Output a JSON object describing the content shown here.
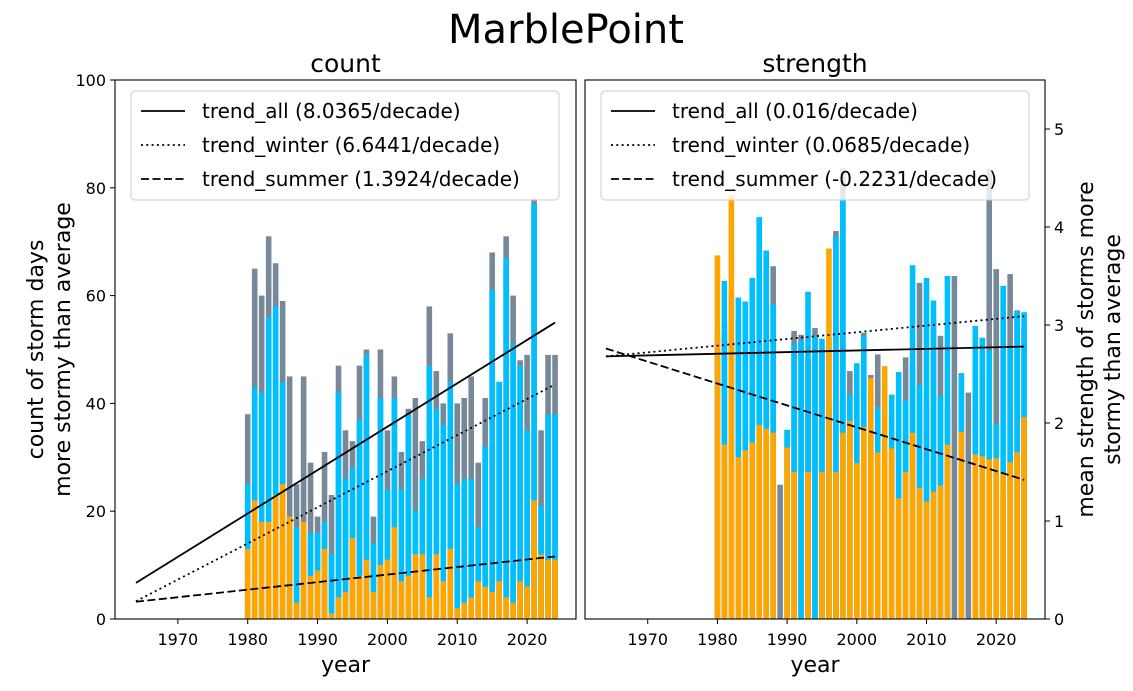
{
  "figure": {
    "title": "MarblePoint"
  },
  "colors": {
    "all": "#778899",
    "winter": "#00bfff",
    "summer": "#ffa500",
    "line": "#000000"
  },
  "chart_data": [
    {
      "type": "bar",
      "title": "count",
      "xlabel": "year",
      "ylabel": [
        "count of storm days",
        "more stormy than average"
      ],
      "xlim": [
        1961,
        2027
      ],
      "ylim": [
        0,
        100
      ],
      "xticks": [
        1970,
        1980,
        1990,
        2000,
        2010,
        2020
      ],
      "yticks": [
        0,
        20,
        40,
        60,
        80,
        100
      ],
      "legend_position": "top",
      "x": [
        1980,
        1981,
        1982,
        1983,
        1984,
        1985,
        1986,
        1987,
        1988,
        1989,
        1990,
        1991,
        1992,
        1993,
        1994,
        1995,
        1996,
        1997,
        1998,
        1999,
        2000,
        2001,
        2002,
        2003,
        2004,
        2005,
        2006,
        2007,
        2008,
        2009,
        2010,
        2011,
        2012,
        2013,
        2014,
        2015,
        2016,
        2017,
        2018,
        2019,
        2020,
        2021,
        2022,
        2023,
        2024
      ],
      "series": [
        {
          "name": "all",
          "color_key": "all",
          "values": [
            38,
            65,
            60,
            71,
            66,
            59,
            45,
            25,
            45,
            29,
            19,
            31,
            23,
            47,
            35,
            33,
            47,
            50,
            19,
            50,
            35,
            45,
            31,
            39,
            41,
            33,
            58,
            46,
            40,
            53,
            40,
            41,
            45,
            29,
            41,
            68,
            44,
            71,
            60,
            48,
            49,
            78,
            35,
            49,
            49
          ]
        },
        {
          "name": "winter",
          "color_key": "winter",
          "values": [
            25,
            43,
            42,
            56,
            58,
            44,
            19,
            17,
            16,
            16,
            16,
            18,
            12,
            42,
            26,
            28,
            37,
            49,
            14,
            41,
            24,
            41,
            24,
            38,
            20,
            26,
            47,
            39,
            36,
            44,
            25,
            26,
            26,
            17,
            32,
            61,
            44,
            67,
            51,
            47,
            35,
            77,
            21,
            38,
            38
          ]
        },
        {
          "name": "summer",
          "color_key": "summer",
          "values": [
            13,
            22,
            18,
            18,
            23,
            25,
            19,
            3,
            18,
            8,
            9,
            13,
            1,
            4,
            5,
            15,
            8,
            11,
            5,
            10,
            11,
            17,
            7,
            8,
            12,
            12,
            4,
            12,
            7,
            13,
            2,
            3,
            4,
            7,
            6,
            5,
            7,
            4,
            3,
            7,
            6,
            22,
            12,
            11,
            11
          ]
        }
      ],
      "trends": [
        {
          "label": "trend_all (8.0365/decade)",
          "style": "solid",
          "x": [
            1964,
            2024
          ],
          "y": [
            6.7,
            55.0
          ]
        },
        {
          "label": "trend_winter (6.6441/decade)",
          "style": "dotted",
          "x": [
            1964,
            2024
          ],
          "y": [
            3.3,
            43.5
          ]
        },
        {
          "label": "trend_summer (1.3924/decade)",
          "style": "dashed",
          "x": [
            1964,
            2024
          ],
          "y": [
            3.2,
            11.6
          ]
        }
      ]
    },
    {
      "type": "bar",
      "title": "strength",
      "xlabel": "year",
      "ylabel": [
        "mean strength of storms more",
        "stormy than average"
      ],
      "ylabel_side": "right",
      "xlim": [
        1961,
        2027
      ],
      "ylim": [
        0,
        5.5
      ],
      "xticks": [
        1970,
        1980,
        1990,
        2000,
        2010,
        2020
      ],
      "yticks": [
        0,
        1,
        2,
        3,
        4,
        5
      ],
      "legend_position": "top",
      "x": [
        1980,
        1981,
        1982,
        1983,
        1984,
        1985,
        1986,
        1987,
        1988,
        1989,
        1990,
        1991,
        1992,
        1993,
        1994,
        1995,
        1996,
        1997,
        1998,
        1999,
        2000,
        2001,
        2002,
        2003,
        2004,
        2005,
        2006,
        2007,
        2008,
        2009,
        2010,
        2011,
        2012,
        2013,
        2014,
        2015,
        2016,
        2017,
        2018,
        2019,
        2020,
        2021,
        2022,
        2023,
        2024
      ],
      "series": [
        {
          "name": "all",
          "color_key": "all",
          "values": [
            2.9,
            3.02,
            3.33,
            3.04,
            2.9,
            3.47,
            4.1,
            3.55,
            3.6,
            1.37,
            1.93,
            2.94,
            2.9,
            2.66,
            2.97,
            2.77,
            2.17,
            3.96,
            4.6,
            2.53,
            2.27,
            2.92,
            2.49,
            2.7,
            2.45,
            2.1,
            1.95,
            2.67,
            2.59,
            3.43,
            2.18,
            3.06,
            2.89,
            2.15,
            3.5,
            2.47,
            2.31,
            2.14,
            2.45,
            4.59,
            3.57,
            1.32,
            3.52,
            3.15,
            2.98
          ]
        },
        {
          "name": "winter",
          "color_key": "winter",
          "values": [
            2.66,
            3.45,
            2.82,
            3.28,
            3.24,
            3.48,
            4.1,
            3.76,
            3.21,
            0,
            1.93,
            2.8,
            2.84,
            3.34,
            2.88,
            2.86,
            2.87,
            3.9,
            4.3,
            2.29,
            2.61,
            2.89,
            2.3,
            2.16,
            0,
            2.29,
            2.52,
            2.23,
            3.61,
            2.39,
            3.48,
            3.25,
            2.28,
            3.5,
            0,
            2.51,
            0,
            2.99,
            2.87,
            2.74,
            1.99,
            3.4,
            2.78,
            3.14,
            3.13
          ]
        },
        {
          "name": "summer",
          "color_key": "summer",
          "values": [
            3.71,
            1.78,
            4.33,
            1.65,
            1.72,
            1.8,
            1.98,
            1.94,
            1.9,
            0,
            1.75,
            1.5,
            0,
            1.5,
            0,
            1.5,
            3.78,
            1.5,
            1.9,
            2.02,
            1.59,
            1.96,
            2.46,
            1.7,
            2.58,
            1.74,
            1.23,
            1.5,
            1.9,
            1.34,
            1.2,
            1.3,
            1.36,
            1.78,
            0,
            1.91,
            0,
            1.68,
            1.66,
            1.63,
            1.64,
            1.48,
            1.6,
            1.7,
            2.06
          ]
        }
      ],
      "trends": [
        {
          "label": "trend_all (0.016/decade)",
          "style": "solid",
          "x": [
            1964,
            2024
          ],
          "y": [
            2.68,
            2.78
          ]
        },
        {
          "label": "trend_winter (0.0685/decade)",
          "style": "dotted",
          "x": [
            1964,
            2024
          ],
          "y": [
            2.68,
            3.09
          ]
        },
        {
          "label": "trend_summer (-0.2231/decade)",
          "style": "dashed",
          "x": [
            1964,
            2024
          ],
          "y": [
            2.76,
            1.42
          ]
        }
      ]
    }
  ]
}
